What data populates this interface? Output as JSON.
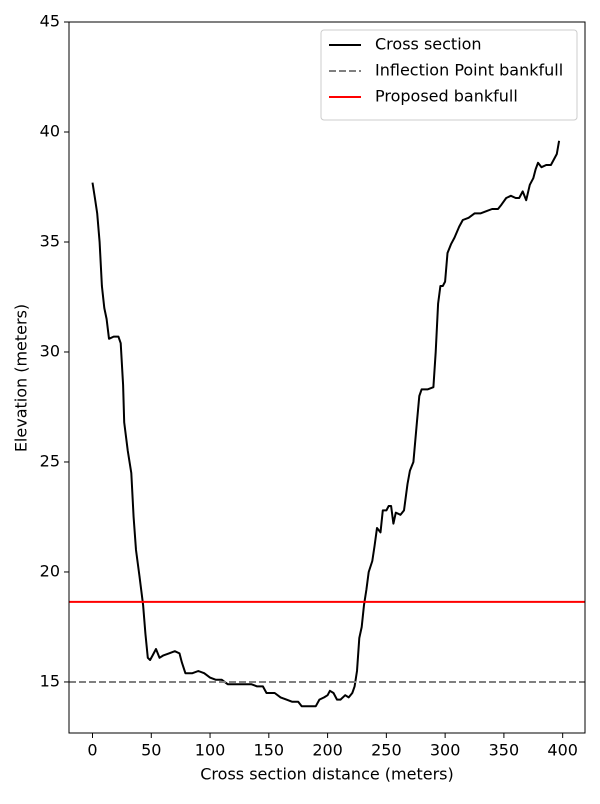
{
  "chart_data": {
    "type": "line",
    "xlabel": "Cross section distance (meters)",
    "ylabel": "Elevation (meters)",
    "xlim": [
      -20,
      419
    ],
    "ylim": [
      12.68,
      45
    ],
    "xticks": [
      0,
      50,
      100,
      150,
      200,
      250,
      300,
      350,
      400
    ],
    "yticks": [
      15,
      20,
      25,
      30,
      35,
      40,
      45
    ],
    "legend": "upper right",
    "series": [
      {
        "name": "Cross section",
        "color": "#000000",
        "x": [
          0,
          2,
          4,
          6,
          8,
          10,
          12,
          14,
          18,
          22,
          24,
          26,
          27,
          30,
          33,
          35,
          37,
          40,
          43,
          45,
          47,
          49,
          51,
          54,
          57,
          60,
          65,
          70,
          74,
          76,
          79,
          85,
          90,
          95,
          100,
          105,
          110,
          115,
          120,
          125,
          130,
          135,
          140,
          145,
          148,
          152,
          155,
          160,
          165,
          170,
          175,
          178,
          185,
          190,
          193,
          197,
          200,
          202,
          205,
          208,
          211,
          215,
          218,
          221,
          223,
          225,
          227,
          229,
          231,
          233,
          235,
          238,
          240,
          242,
          245,
          247,
          250,
          252,
          254,
          256,
          258,
          262,
          265,
          268,
          270,
          273,
          276,
          278,
          280,
          285,
          290,
          292,
          294,
          296,
          298,
          300,
          302,
          305,
          308,
          312,
          315,
          320,
          325,
          330,
          335,
          340,
          345,
          348,
          352,
          356,
          360,
          363,
          366,
          369,
          372,
          375,
          377,
          379,
          382,
          386,
          390,
          395,
          397
        ],
        "values": [
          37.7,
          37,
          36.3,
          35,
          33,
          32,
          31.5,
          30.6,
          30.7,
          30.7,
          30.4,
          28.5,
          26.8,
          25.5,
          24.5,
          22.5,
          21,
          19.8,
          18.5,
          17.2,
          16.1,
          16,
          16.2,
          16.5,
          16.1,
          16.2,
          16.3,
          16.4,
          16.3,
          15.9,
          15.4,
          15.4,
          15.5,
          15.4,
          15.2,
          15.1,
          15.1,
          14.9,
          14.9,
          14.9,
          14.9,
          14.9,
          14.8,
          14.8,
          14.5,
          14.5,
          14.5,
          14.3,
          14.2,
          14.1,
          14.1,
          13.9,
          13.9,
          13.9,
          14.2,
          14.3,
          14.4,
          14.6,
          14.5,
          14.2,
          14.2,
          14.4,
          14.3,
          14.5,
          14.8,
          15.5,
          17,
          17.5,
          18.5,
          19.2,
          20,
          20.5,
          21.2,
          22,
          21.8,
          22.8,
          22.8,
          23,
          23,
          22.2,
          22.7,
          22.6,
          22.8,
          24,
          24.6,
          25,
          26.8,
          28,
          28.3,
          28.3,
          28.4,
          30,
          32.2,
          33,
          33,
          33.2,
          34.5,
          34.9,
          35.2,
          35.7,
          36,
          36.1,
          36.3,
          36.3,
          36.4,
          36.5,
          36.5,
          36.7,
          37,
          37.1,
          37,
          37,
          37.3,
          36.9,
          37.6,
          37.9,
          38.3,
          38.6,
          38.4,
          38.5,
          38.5,
          39,
          39.6
        ]
      }
    ],
    "hlines": [
      {
        "name": "Inflection Point bankfull",
        "color": "#808080",
        "y": 15,
        "style": "dashed"
      },
      {
        "name": "Proposed bankfull",
        "color": "#ff0000",
        "y": 18.64,
        "style": "solid"
      }
    ]
  }
}
